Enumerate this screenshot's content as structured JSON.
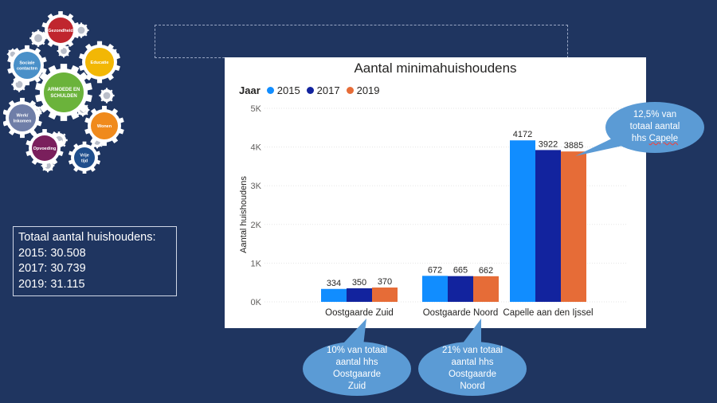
{
  "logo": {
    "center_label": "ARMOEDE EN SCHULDEN",
    "gears": [
      {
        "label": "Gezondheid",
        "color": "#c0262e"
      },
      {
        "label": "Educatie",
        "color": "#f2b705"
      },
      {
        "label": "Wonen",
        "color": "#f08a1c"
      },
      {
        "label": "Vrije tijd",
        "color": "#1f4e8c"
      },
      {
        "label": "Opvoeding",
        "color": "#7a1f5c"
      },
      {
        "label": "Werk/ Inkomen",
        "color": "#6f7ea8"
      },
      {
        "label": "Sociale contacten",
        "color": "#4a90c8"
      }
    ],
    "center_color": "#6bb33b"
  },
  "totals": {
    "heading": "Totaal aantal huishoudens:",
    "lines": [
      "2015: 30.508",
      "2017: 30.739",
      "2019: 31.115"
    ]
  },
  "chart_data": {
    "type": "bar",
    "title": "Aantal minimahuishoudens",
    "legend_title": "Jaar",
    "legend_position": "top-left",
    "ylabel": "Aantal huishoudens",
    "xlabel": "",
    "ylim": [
      0,
      5000
    ],
    "yticks": [
      0,
      1000,
      2000,
      3000,
      4000,
      5000
    ],
    "ytick_labels": [
      "0K",
      "1K",
      "2K",
      "3K",
      "4K",
      "5K"
    ],
    "grid": true,
    "categories": [
      "Oostgaarde Zuid",
      "Oostgaarde Noord",
      "Capelle aan den Ijssel"
    ],
    "series": [
      {
        "name": "2015",
        "color": "#118dff",
        "values": [
          334,
          672,
          4172
        ]
      },
      {
        "name": "2017",
        "color": "#12239e",
        "values": [
          350,
          665,
          3922
        ]
      },
      {
        "name": "2019",
        "color": "#e66c37",
        "values": [
          370,
          662,
          3885
        ]
      }
    ]
  },
  "callouts": {
    "capelle": {
      "line1": "12,5% van",
      "line2": "totaal aantal",
      "line3a": "hhs ",
      "line3b": "Capele"
    },
    "zuid": {
      "line1": "10% van totaal",
      "line2": "aantal hhs",
      "line3": "Oostgaarde",
      "line4": "Zuid"
    },
    "noord": {
      "line1": "21% van totaal",
      "line2": "aantal hhs",
      "line3": "Oostgaarde",
      "line4": "Noord"
    },
    "fill_color": "#5b9bd5"
  }
}
